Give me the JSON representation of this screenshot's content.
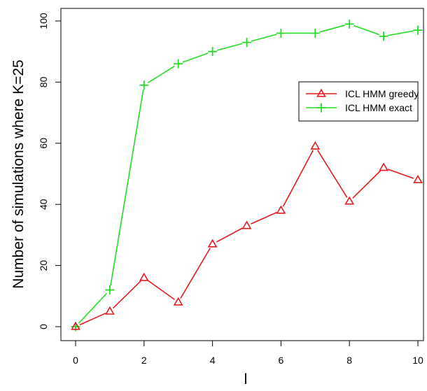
{
  "chart_data": {
    "type": "line",
    "x": [
      0,
      1,
      2,
      3,
      4,
      5,
      6,
      7,
      8,
      9,
      10
    ],
    "xlabel": "l",
    "ylabel": "Number of simulations where K=25",
    "xlim": [
      0,
      10
    ],
    "ylim": [
      0,
      100
    ],
    "xticks": [
      0,
      2,
      4,
      6,
      8,
      10
    ],
    "yticks": [
      0,
      20,
      40,
      60,
      80,
      100
    ],
    "xtick_labels": [
      "0",
      "2",
      "4",
      "6",
      "8",
      "10"
    ],
    "ytick_labels": [
      "0",
      "20",
      "40",
      "60",
      "80",
      "100"
    ],
    "grid": false,
    "legend_position": "upper-right",
    "series": [
      {
        "name": "ICL HMM greedy",
        "color": "#e41a1c",
        "marker": "triangle",
        "values": [
          0,
          5,
          16,
          8,
          27,
          33,
          38,
          59,
          41,
          52,
          48
        ]
      },
      {
        "name": "ICL HMM exact",
        "color": "#22dd22",
        "marker": "plus",
        "values": [
          0,
          12,
          79,
          86,
          90,
          93,
          96,
          96,
          99,
          95,
          97
        ]
      }
    ]
  }
}
